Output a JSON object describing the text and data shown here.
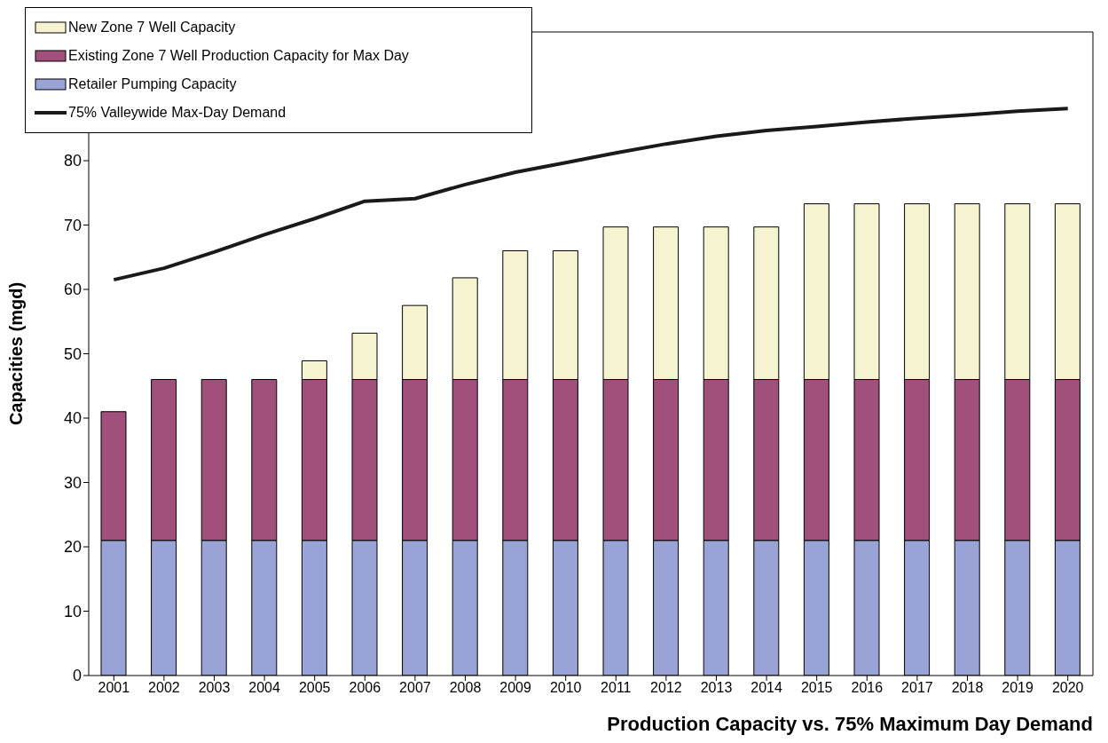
{
  "chart_data": {
    "type": "bar",
    "stacked": true,
    "xlabel": "Production Capacity vs. 75% Maximum Day Demand",
    "ylabel": "Capacities (mgd)",
    "categories": [
      "2001",
      "2002",
      "2003",
      "2004",
      "2005",
      "2006",
      "2007",
      "2008",
      "2009",
      "2010",
      "2011",
      "2012",
      "2013",
      "2014",
      "2015",
      "2016",
      "2017",
      "2018",
      "2019",
      "2020"
    ],
    "ylim": [
      0,
      100
    ],
    "yticks": [
      0,
      10,
      20,
      30,
      40,
      50,
      60,
      70,
      80
    ],
    "grid": false,
    "legend": "top left",
    "series": [
      {
        "name": "Retailer Pumping Capacity",
        "color": "#99a3d6",
        "values": [
          21,
          21,
          21,
          21,
          21,
          21,
          21,
          21,
          21,
          21,
          21,
          21,
          21,
          21,
          21,
          21,
          21,
          21,
          21,
          21
        ]
      },
      {
        "name": "Existing Zone 7 Well Production Capacity for Max Day",
        "color": "#a0507a",
        "values": [
          20,
          25,
          25,
          25,
          25,
          25,
          25,
          25,
          25,
          25,
          25,
          25,
          25,
          25,
          25,
          25,
          25,
          25,
          25,
          25
        ]
      },
      {
        "name": "New Zone 7 Well Capacity",
        "color": "#f5f3d0",
        "values": [
          0,
          0,
          0,
          0,
          2.9,
          7.2,
          11.5,
          15.8,
          20,
          20,
          23.7,
          23.7,
          23.7,
          23.7,
          27.3,
          27.3,
          27.3,
          27.3,
          27.3,
          27.3
        ]
      },
      {
        "name": "75% Valleywide Max-Day Demand",
        "type": "line",
        "color": "#1a1a1a",
        "values": [
          61.5,
          63.3,
          65.8,
          68.5,
          71,
          73.7,
          74.1,
          76.3,
          78.2,
          79.7,
          81.2,
          82.6,
          83.8,
          84.7,
          85.3,
          86,
          86.6,
          87.1,
          87.7,
          88.1
        ]
      }
    ]
  }
}
